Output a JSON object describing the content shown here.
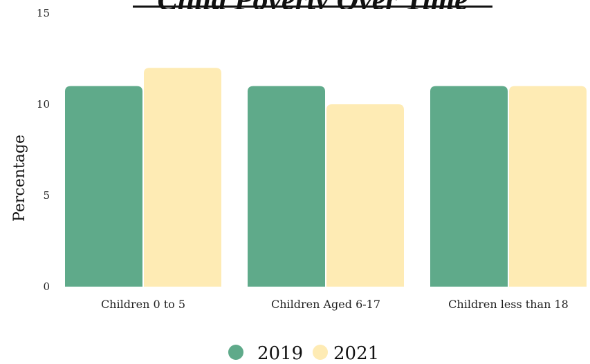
{
  "chart_data": {
    "type": "bar",
    "title": "Child Poverty Over Time",
    "xlabel": "",
    "ylabel": "Percentage",
    "categories": [
      "Children 0 to 5",
      "Children Aged 6-17",
      "Children less than 18"
    ],
    "series": [
      {
        "name": "2019",
        "values": [
          11,
          11,
          11
        ],
        "color": "#5faa8a"
      },
      {
        "name": "2021",
        "values": [
          12,
          10,
          11
        ],
        "color": "#feebb4"
      }
    ],
    "ylim": [
      0,
      15
    ],
    "yticks": [
      "0",
      "5",
      "10",
      "15"
    ],
    "grid": false,
    "legend_position": "bottom-center"
  }
}
